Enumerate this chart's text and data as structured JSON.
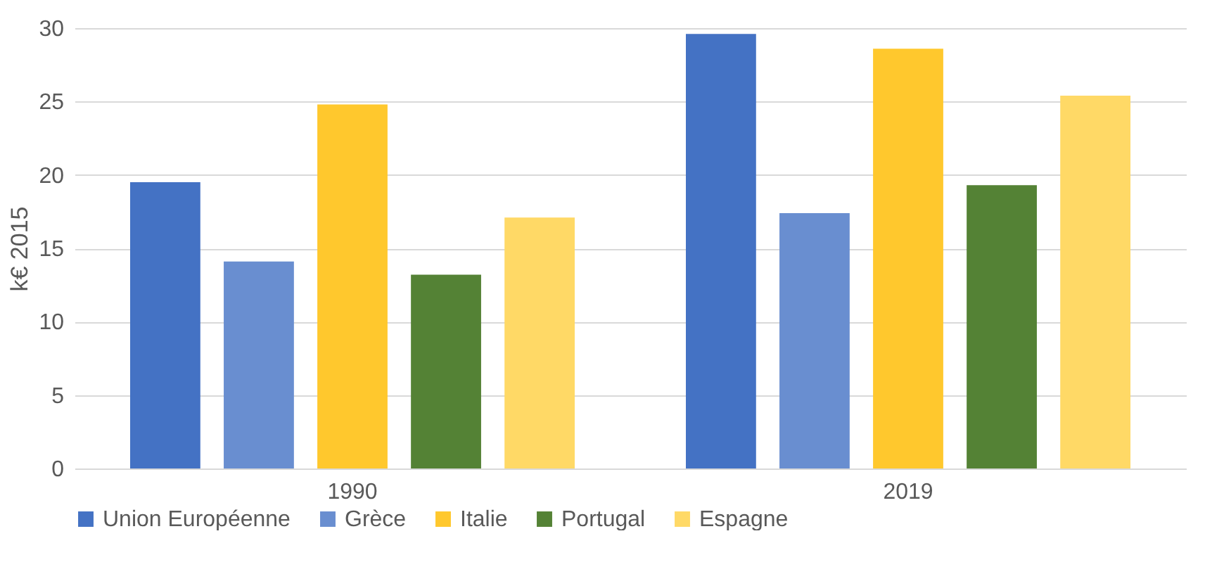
{
  "chart_data": {
    "type": "bar",
    "ylabel": "k€ 2015",
    "categories": [
      "1990",
      "2019"
    ],
    "series": [
      {
        "name": "Union Européenne",
        "color": "#4472c4",
        "values": [
          19.5,
          29.6
        ]
      },
      {
        "name": "Grèce",
        "color": "#698ed0",
        "values": [
          14.1,
          17.4
        ]
      },
      {
        "name": "Italie",
        "color": "#ffc82d",
        "values": [
          24.8,
          28.6
        ]
      },
      {
        "name": "Portugal",
        "color": "#548235",
        "values": [
          13.2,
          19.3
        ]
      },
      {
        "name": "Espagne",
        "color": "#ffd966",
        "values": [
          17.1,
          25.4
        ]
      }
    ],
    "ylim": [
      0,
      30
    ],
    "yticks": [
      0,
      5,
      10,
      15,
      20,
      25,
      30
    ],
    "grid": "y",
    "legend": "bottom"
  }
}
